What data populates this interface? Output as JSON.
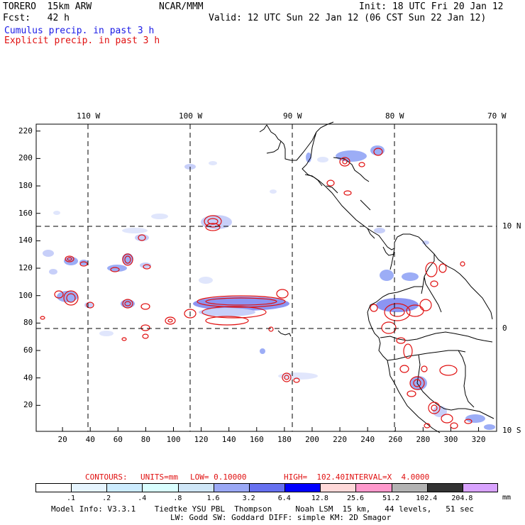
{
  "header": {
    "model": "TORERO  15km ARW",
    "center": "NCAR/MMM",
    "init": "Init: 18 UTC Fri 20 Jan 12",
    "fcst": "Fcst:   42 h",
    "valid": "Valid: 12 UTC Sun 22 Jan 12 (06 CST Sun 22 Jan 12)",
    "legend_cumulus": "Cumulus precip. in past 3 h",
    "legend_explicit": "Explicit precip. in past 3 h",
    "cumulus_color": "#1a1ae6",
    "explicit_color": "#e01010"
  },
  "map": {
    "lon_labels": [
      "110 W",
      "100 W",
      "90 W",
      "80 W",
      "70 W"
    ],
    "lat_labels": [
      "10 N",
      "0",
      "10 S"
    ],
    "y_ticks": [
      "220",
      "200",
      "180",
      "160",
      "140",
      "120",
      "100",
      "80",
      "60",
      "40",
      "20"
    ],
    "x_ticks": [
      "20",
      "40",
      "60",
      "80",
      "100",
      "120",
      "140",
      "160",
      "180",
      "200",
      "220",
      "240",
      "260",
      "280",
      "300",
      "320"
    ]
  },
  "contour_info": {
    "label": "CONTOURS:",
    "units": "UNITS=mm",
    "low": "LOW= 0.10000",
    "high": "HIGH=  102.40",
    "interval": "INTERVAL=X  4.0000"
  },
  "colorbar": {
    "unit": "mm",
    "colors": [
      "#ffffff",
      "#e6f5ff",
      "#ccecff",
      "#d9ffff",
      "#cfe6f7",
      "#9aa8f5",
      "#6670f0",
      "#0000ff",
      "#ffd9d9",
      "#ff99cc",
      "#b3b3b3",
      "#333333",
      "#d9a3ff"
    ],
    "labels": [
      ".1",
      ".2",
      ".4",
      ".8",
      "1.6",
      "3.2",
      "6.4",
      "12.8",
      "25.6",
      "51.2",
      "102.4",
      "204.8"
    ]
  },
  "footer": {
    "line1": "Model Info: V3.3.1    Tiedtke YSU PBL  Thompson     Noah LSM  15 km,   44 levels,   51 sec",
    "line2": "LW: Godd SW: Goddard DIFF: simple KM: 2D Smagor"
  }
}
